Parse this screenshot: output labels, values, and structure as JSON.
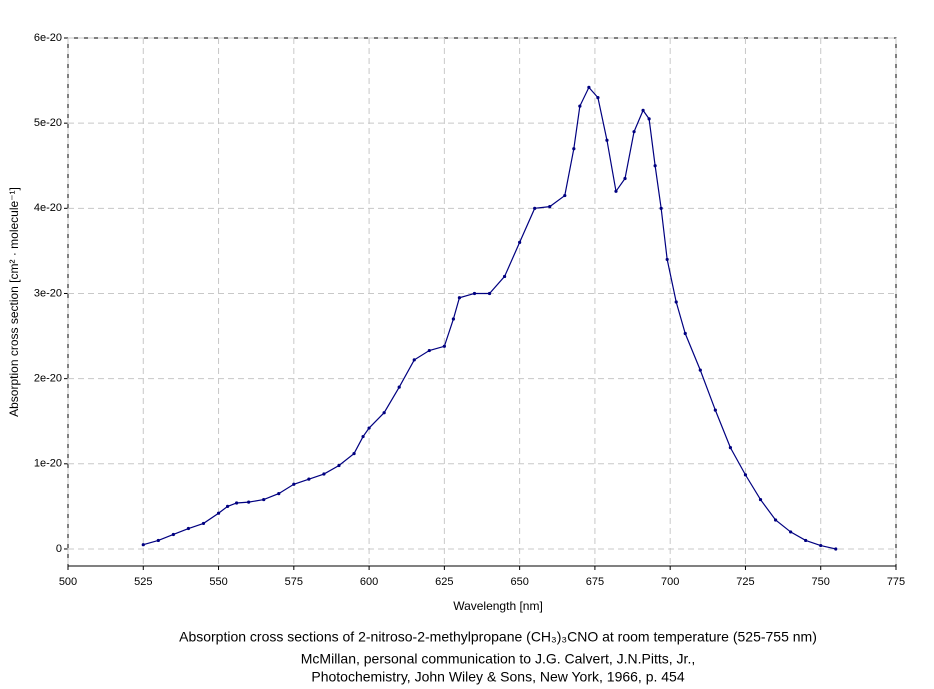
{
  "chart_data": {
    "type": "line",
    "title": "Absorption cross sections of 2-nitroso-2-methylpropane (CH₃)₃CNO at room temperature (525-755 nm)",
    "subtitle": [
      "McMillan, personal communication to J.G. Calvert, J.N.Pitts, Jr.,",
      "Photochemistry, John Wiley & Sons, New York, 1966, p. 454"
    ],
    "x_label": "Wavelength [nm]",
    "y_label": "Absorption cross section [cm² · molecule⁻¹]",
    "xlim": [
      500,
      775
    ],
    "xticks": [
      500,
      525,
      550,
      575,
      600,
      625,
      650,
      675,
      700,
      725,
      750,
      775
    ],
    "ylim": [
      -2e-21,
      6e-20
    ],
    "yticks": [
      0,
      1e-20,
      2e-20,
      3e-20,
      4e-20,
      5e-20,
      6e-20
    ],
    "grid": true,
    "series": [
      {
        "color": "#000080",
        "x": [
          525,
          530,
          535,
          540,
          545,
          550,
          553,
          556,
          560,
          565,
          570,
          575,
          580,
          585,
          590,
          595,
          598,
          600,
          605,
          610,
          615,
          620,
          625,
          628,
          630,
          635,
          640,
          645,
          650,
          655,
          660,
          665,
          668,
          670,
          673,
          676,
          679,
          682,
          685,
          688,
          691,
          693,
          695,
          697,
          699,
          702,
          705,
          710,
          715,
          720,
          725,
          730,
          735,
          740,
          745,
          750,
          755
        ],
        "values": [
          5e-22,
          1e-21,
          1.7e-21,
          2.4e-21,
          3e-21,
          4.2e-21,
          5e-21,
          5.4e-21,
          5.5e-21,
          5.8e-21,
          6.5e-21,
          7.6e-21,
          8.2e-21,
          8.8e-21,
          9.8e-21,
          1.12e-20,
          1.32e-20,
          1.42e-20,
          1.6e-20,
          1.9e-20,
          2.22e-20,
          2.33e-20,
          2.38e-20,
          2.7e-20,
          2.95e-20,
          3e-20,
          3e-20,
          3.2e-20,
          3.6e-20,
          4e-20,
          4.02e-20,
          4.15e-20,
          4.7e-20,
          5.2e-20,
          5.42e-20,
          5.3e-20,
          4.8e-20,
          4.2e-20,
          4.35e-20,
          4.9e-20,
          5.15e-20,
          5.05e-20,
          4.5e-20,
          4e-20,
          3.4e-20,
          2.9e-20,
          2.53e-20,
          2.1e-20,
          1.63e-20,
          1.19e-20,
          8.7e-21,
          5.8e-21,
          3.4e-21,
          2e-21,
          1e-21,
          4e-22,
          0
        ]
      }
    ]
  }
}
